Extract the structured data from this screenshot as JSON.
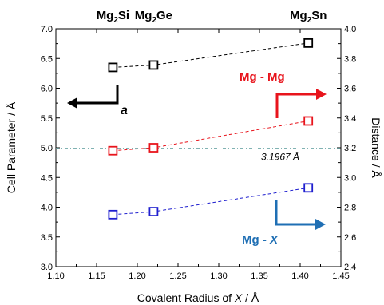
{
  "chart_data": {
    "type": "scatter",
    "xlabel_parts": [
      "Covalent Radius of ",
      "X",
      " / Å"
    ],
    "ylabel_left": "Cell Parameter / Å",
    "ylabel_right": "Distance / Å",
    "xlim": [
      1.1,
      1.45
    ],
    "ylim_left": [
      3.0,
      7.0
    ],
    "ylim_right": [
      2.4,
      4.0
    ],
    "x_ticks": [
      "1.10",
      "1.15",
      "1.20",
      "1.25",
      "1.30",
      "1.35",
      "1.40",
      "1.45"
    ],
    "y_left_ticks": [
      "3.0",
      "3.5",
      "4.0",
      "4.5",
      "5.0",
      "5.5",
      "6.0",
      "6.5",
      "7.0"
    ],
    "y_right_ticks": [
      "2.4",
      "2.6",
      "2.8",
      "3.0",
      "3.2",
      "3.4",
      "3.6",
      "3.8",
      "4.0"
    ],
    "top_labels": [
      {
        "base": "Mg",
        "sub": "2",
        "rest": "Si",
        "x": 1.17
      },
      {
        "base": "Mg",
        "sub": "2",
        "rest": "Ge",
        "x": 1.22
      },
      {
        "base": "Mg",
        "sub": "2",
        "rest": "Sn",
        "x": 1.41
      }
    ],
    "series": [
      {
        "name": "a",
        "axis": "left",
        "color": "#000000",
        "x": [
          1.17,
          1.22,
          1.41
        ],
        "y": [
          6.35,
          6.39,
          6.76
        ]
      },
      {
        "name": "Mg - Mg",
        "axis": "right",
        "color": "#e8141c",
        "x": [
          1.17,
          1.22,
          1.41
        ],
        "y": [
          3.18,
          3.2,
          3.38
        ]
      },
      {
        "name": "Mg - X",
        "axis": "right",
        "color": "#1f1fcf",
        "x": [
          1.17,
          1.22,
          1.41
        ],
        "y": [
          2.75,
          2.77,
          2.93
        ]
      }
    ],
    "reference_line": {
      "value_right": 3.1967,
      "label": "3.1967 Å",
      "color": "#6fa8a8"
    },
    "annotations": {
      "a_label": "a",
      "mgmg_label": "Mg - Mg",
      "mgx_label_prefix": "Mg - ",
      "mgx_label_italic": "X"
    },
    "colors": {
      "black": "#000000",
      "red": "#e8141c",
      "blue_marker": "#1f1fcf",
      "teal_arrow": "#1f6fb4"
    }
  }
}
